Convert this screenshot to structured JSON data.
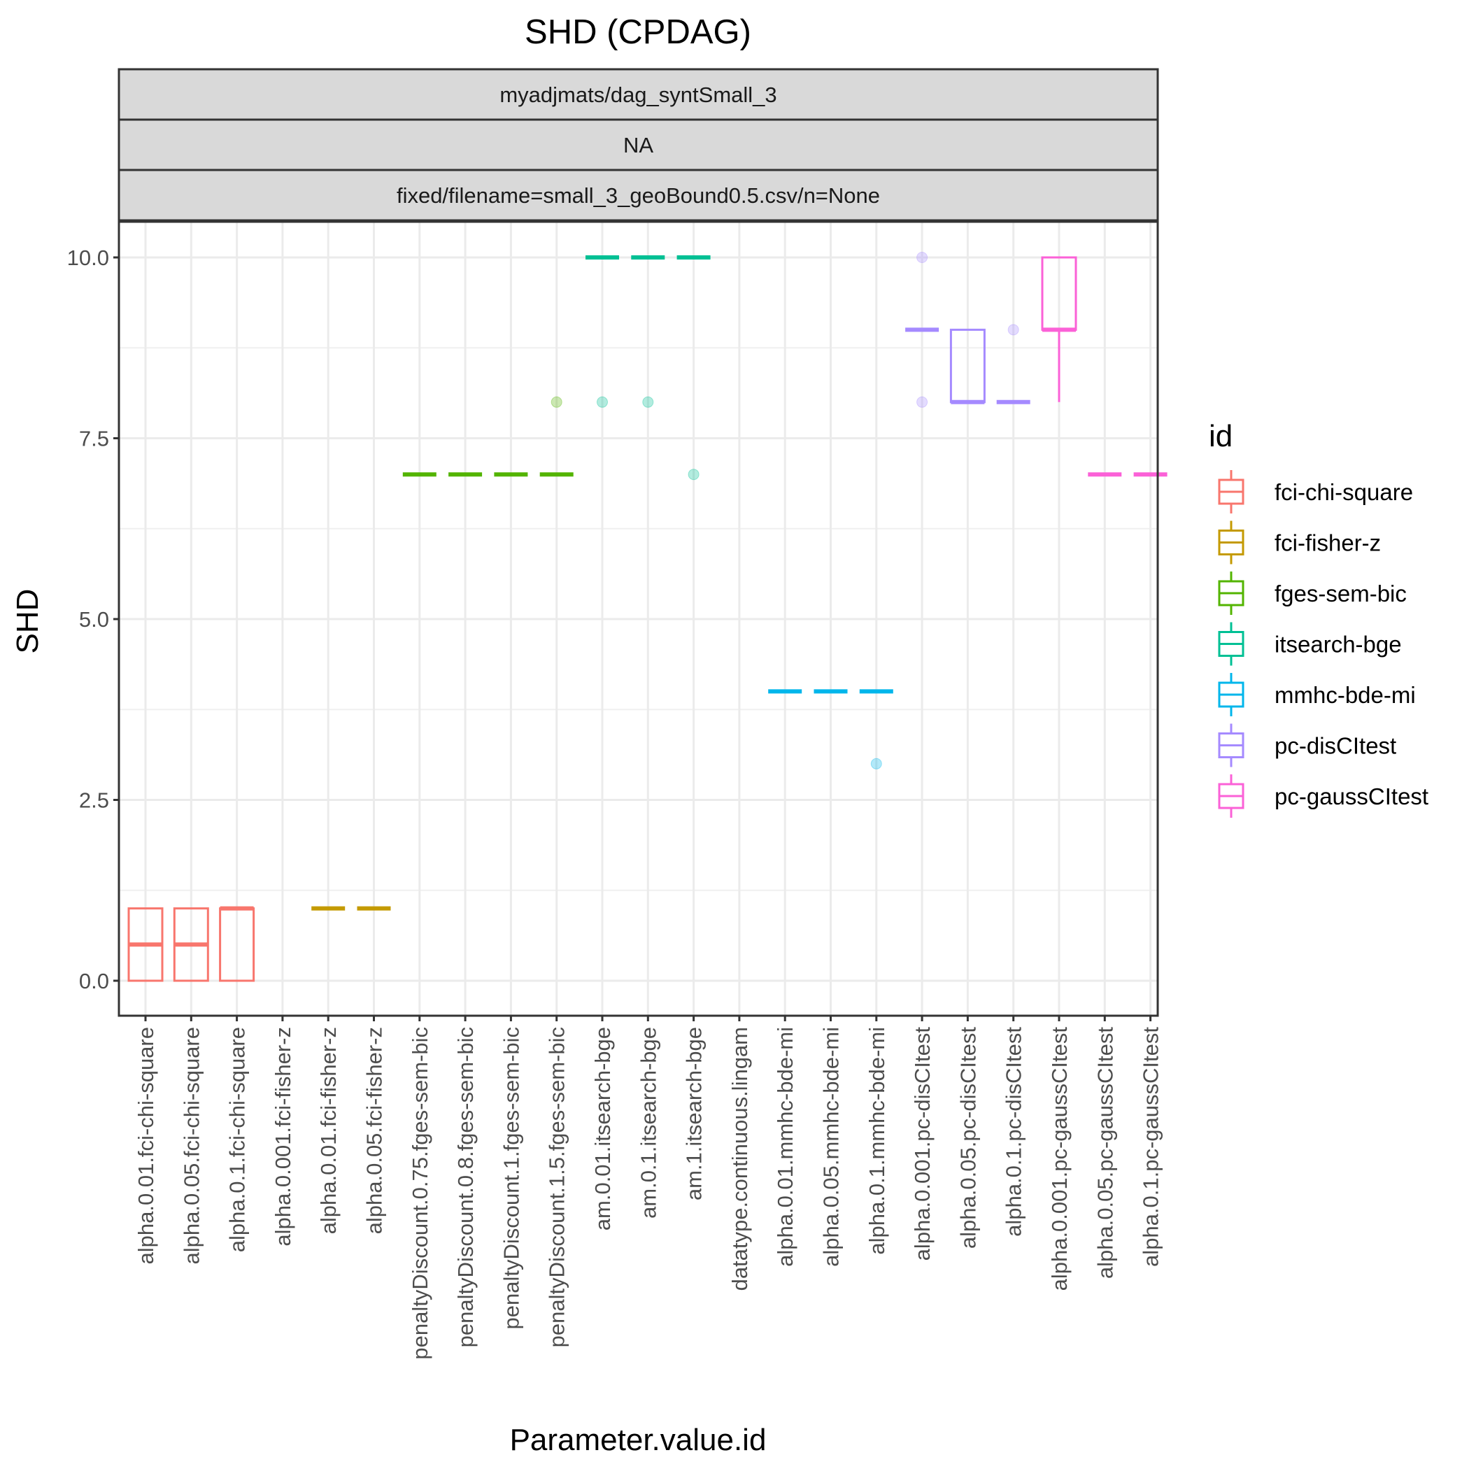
{
  "chart_data": {
    "type": "boxplot",
    "title": "SHD (CPDAG)",
    "xlabel": "Parameter.value.id",
    "ylabel": "SHD",
    "ylim": [
      -0.37,
      10.5
    ],
    "y_ticks": [
      "0.0",
      "2.5",
      "5.0",
      "7.5",
      "10.0"
    ],
    "y_tick_values": [
      0,
      2.5,
      5,
      7.5,
      10
    ],
    "facet_strips": [
      "myadjmats/dag_syntSmall_3",
      "NA",
      "fixed/filename=small_3_geoBound0.5.csv/n=None"
    ],
    "legend": {
      "title": "id",
      "entries": [
        {
          "label": "fci-chi-square",
          "color": "#F8766D"
        },
        {
          "label": "fci-fisher-z",
          "color": "#C49A00"
        },
        {
          "label": "fges-sem-bic",
          "color": "#53B400"
        },
        {
          "label": "itsearch-bge",
          "color": "#00C094"
        },
        {
          "label": "mmhc-bde-mi",
          "color": "#00B6EB"
        },
        {
          "label": "pc-disCItest",
          "color": "#A58AFF"
        },
        {
          "label": "pc-gaussCItest",
          "color": "#FB61D7"
        }
      ]
    },
    "categories": [
      {
        "label": "alpha.0.01.fci-chi-square",
        "group": 0,
        "box": {
          "lower": 0,
          "q1": 0,
          "median": 0.5,
          "q3": 1,
          "upper": 1
        },
        "outliers": []
      },
      {
        "label": "alpha.0.05.fci-chi-square",
        "group": 0,
        "box": {
          "lower": 0,
          "q1": 0,
          "median": 0.5,
          "q3": 1,
          "upper": 1
        },
        "outliers": []
      },
      {
        "label": "alpha.0.1.fci-chi-square",
        "group": 0,
        "box": {
          "lower": 0,
          "q1": 0,
          "median": 1,
          "q3": 1,
          "upper": 1
        },
        "outliers": []
      },
      {
        "label": "alpha.0.001.fci-fisher-z",
        "group": 1,
        "box": null,
        "outliers": []
      },
      {
        "label": "alpha.0.01.fci-fisher-z",
        "group": 1,
        "box": {
          "lower": 1,
          "q1": 1,
          "median": 1,
          "q3": 1,
          "upper": 1
        },
        "outliers": []
      },
      {
        "label": "alpha.0.05.fci-fisher-z",
        "group": 1,
        "box": {
          "lower": 1,
          "q1": 1,
          "median": 1,
          "q3": 1,
          "upper": 1
        },
        "outliers": []
      },
      {
        "label": "penaltyDiscount.0.75.fges-sem-bic",
        "group": 2,
        "box": {
          "lower": 7,
          "q1": 7,
          "median": 7,
          "q3": 7,
          "upper": 7
        },
        "outliers": []
      },
      {
        "label": "penaltyDiscount.0.8.fges-sem-bic",
        "group": 2,
        "box": {
          "lower": 7,
          "q1": 7,
          "median": 7,
          "q3": 7,
          "upper": 7
        },
        "outliers": []
      },
      {
        "label": "penaltyDiscount.1.fges-sem-bic",
        "group": 2,
        "box": {
          "lower": 7,
          "q1": 7,
          "median": 7,
          "q3": 7,
          "upper": 7
        },
        "outliers": []
      },
      {
        "label": "penaltyDiscount.1.5.fges-sem-bic",
        "group": 2,
        "box": {
          "lower": 7,
          "q1": 7,
          "median": 7,
          "q3": 7,
          "upper": 7
        },
        "outliers": [
          8
        ]
      },
      {
        "label": "am.0.01.itsearch-bge",
        "group": 3,
        "box": {
          "lower": 10,
          "q1": 10,
          "median": 10,
          "q3": 10,
          "upper": 10
        },
        "outliers": [
          8
        ]
      },
      {
        "label": "am.0.1.itsearch-bge",
        "group": 3,
        "box": {
          "lower": 10,
          "q1": 10,
          "median": 10,
          "q3": 10,
          "upper": 10
        },
        "outliers": [
          8
        ]
      },
      {
        "label": "am.1.itsearch-bge",
        "group": 3,
        "box": {
          "lower": 10,
          "q1": 10,
          "median": 10,
          "q3": 10,
          "upper": 10
        },
        "outliers": [
          7
        ]
      },
      {
        "label": "datatype.continuous.lingam",
        "group": -1,
        "box": null,
        "outliers": []
      },
      {
        "label": "alpha.0.01.mmhc-bde-mi",
        "group": 4,
        "box": {
          "lower": 4,
          "q1": 4,
          "median": 4,
          "q3": 4,
          "upper": 4
        },
        "outliers": []
      },
      {
        "label": "alpha.0.05.mmhc-bde-mi",
        "group": 4,
        "box": {
          "lower": 4,
          "q1": 4,
          "median": 4,
          "q3": 4,
          "upper": 4
        },
        "outliers": []
      },
      {
        "label": "alpha.0.1.mmhc-bde-mi",
        "group": 4,
        "box": {
          "lower": 4,
          "q1": 4,
          "median": 4,
          "q3": 4,
          "upper": 4
        },
        "outliers": [
          3
        ]
      },
      {
        "label": "alpha.0.001.pc-disCItest",
        "group": 5,
        "box": {
          "lower": 9,
          "q1": 9,
          "median": 9,
          "q3": 9,
          "upper": 9
        },
        "outliers": [
          10,
          8
        ]
      },
      {
        "label": "alpha.0.05.pc-disCItest",
        "group": 5,
        "box": {
          "lower": 8,
          "q1": 8,
          "median": 8,
          "q3": 9,
          "upper": 9
        },
        "outliers": []
      },
      {
        "label": "alpha.0.1.pc-disCItest",
        "group": 5,
        "box": {
          "lower": 8,
          "q1": 8,
          "median": 8,
          "q3": 8,
          "upper": 8
        },
        "outliers": [
          9
        ]
      },
      {
        "label": "alpha.0.001.pc-gaussCItest",
        "group": 6,
        "box": {
          "lower": 8,
          "q1": 9,
          "median": 9,
          "q3": 10,
          "upper": 10
        },
        "outliers": []
      },
      {
        "label": "alpha.0.05.pc-gaussCItest",
        "group": 6,
        "box": {
          "lower": 7,
          "q1": 7,
          "median": 7,
          "q3": 7,
          "upper": 7
        },
        "outliers": []
      },
      {
        "label": "alpha.0.1.pc-gaussCItest",
        "group": 6,
        "box": {
          "lower": 7,
          "q1": 7,
          "median": 7,
          "q3": 7,
          "upper": 7
        },
        "outliers": []
      }
    ]
  }
}
